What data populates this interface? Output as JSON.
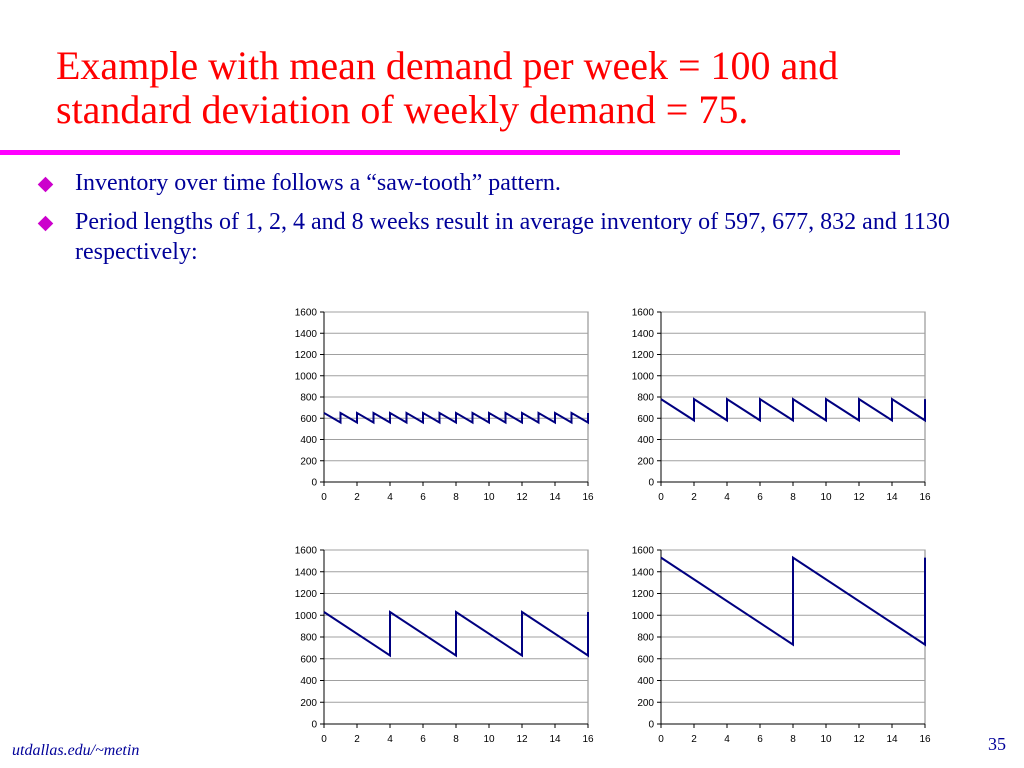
{
  "slide": {
    "title": "Example with mean demand per week = 100 and standard deviation of weekly demand = 75.",
    "bullets": [
      "Inventory over time follows a “saw-tooth” pattern.",
      "Period lengths of 1, 2, 4 and 8 weeks result in average inventory of 597, 677, 832 and 1130 respectively:"
    ],
    "footer_left": "utdallas.edu/~metin",
    "page_number": "35",
    "colors": {
      "title": "#ff0000",
      "rule": "#ff00ff",
      "text": "#000099",
      "bullet": "#cc00cc",
      "line": "#000080"
    }
  },
  "chart_data": [
    {
      "type": "line",
      "period": 1,
      "xlim": [
        0,
        16
      ],
      "ylim": [
        0,
        1600
      ],
      "x_ticks": [
        0,
        2,
        4,
        6,
        8,
        10,
        12,
        14,
        16
      ],
      "y_ticks": [
        0,
        200,
        400,
        600,
        800,
        1000,
        1200,
        1400,
        1600
      ],
      "grid": true,
      "x": [
        0,
        1,
        1,
        2,
        2,
        3,
        3,
        4,
        4,
        5,
        5,
        6,
        6,
        7,
        7,
        8,
        8,
        9,
        9,
        10,
        10,
        11,
        11,
        12,
        12,
        13,
        13,
        14,
        14,
        15,
        15,
        16,
        16
      ],
      "y": [
        650,
        560,
        650,
        560,
        650,
        560,
        650,
        560,
        650,
        560,
        650,
        560,
        650,
        560,
        650,
        560,
        650,
        560,
        650,
        560,
        650,
        560,
        650,
        560,
        650,
        560,
        650,
        560,
        650,
        560,
        650,
        560,
        650
      ]
    },
    {
      "type": "line",
      "period": 2,
      "xlim": [
        0,
        16
      ],
      "ylim": [
        0,
        1600
      ],
      "x_ticks": [
        0,
        2,
        4,
        6,
        8,
        10,
        12,
        14,
        16
      ],
      "y_ticks": [
        0,
        200,
        400,
        600,
        800,
        1000,
        1200,
        1400,
        1600
      ],
      "grid": true,
      "x": [
        0,
        2,
        2,
        4,
        4,
        6,
        6,
        8,
        8,
        10,
        10,
        12,
        12,
        14,
        14,
        16,
        16
      ],
      "y": [
        780,
        580,
        780,
        580,
        780,
        580,
        780,
        580,
        780,
        580,
        780,
        580,
        780,
        580,
        780,
        580,
        780
      ]
    },
    {
      "type": "line",
      "period": 4,
      "xlim": [
        0,
        16
      ],
      "ylim": [
        0,
        1600
      ],
      "x_ticks": [
        0,
        2,
        4,
        6,
        8,
        10,
        12,
        14,
        16
      ],
      "y_ticks": [
        0,
        200,
        400,
        600,
        800,
        1000,
        1200,
        1400,
        1600
      ],
      "grid": true,
      "x": [
        0,
        4,
        4,
        8,
        8,
        12,
        12,
        16,
        16
      ],
      "y": [
        1030,
        630,
        1030,
        630,
        1030,
        630,
        1030,
        630,
        1030
      ]
    },
    {
      "type": "line",
      "period": 8,
      "xlim": [
        0,
        16
      ],
      "ylim": [
        0,
        1600
      ],
      "x_ticks": [
        0,
        2,
        4,
        6,
        8,
        10,
        12,
        14,
        16
      ],
      "y_ticks": [
        0,
        200,
        400,
        600,
        800,
        1000,
        1200,
        1400,
        1600
      ],
      "grid": true,
      "x": [
        0,
        8,
        8,
        16,
        16
      ],
      "y": [
        1530,
        730,
        1530,
        730,
        1530
      ]
    }
  ]
}
